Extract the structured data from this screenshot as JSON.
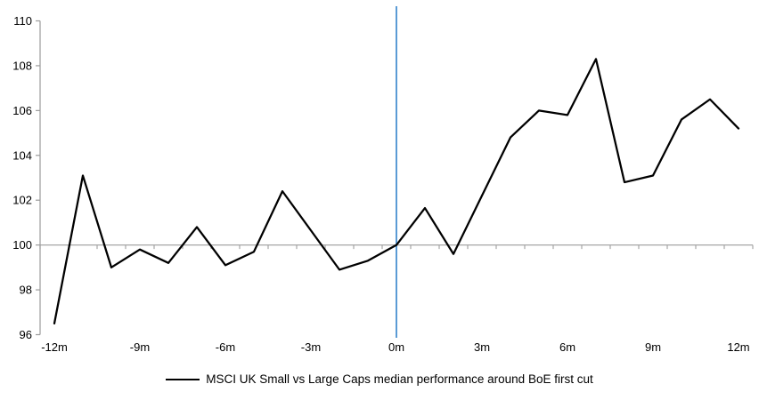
{
  "chart_data": {
    "type": "line",
    "title": "",
    "x": [
      -12,
      -11,
      -10,
      -9,
      -8,
      -7,
      -6,
      -5,
      -4,
      -3,
      -2,
      -1,
      0,
      1,
      2,
      3,
      4,
      5,
      6,
      7,
      8,
      9,
      10,
      11,
      12
    ],
    "series": [
      {
        "name": "MSCI UK Small vs Large Caps median performance around BoE first cut",
        "values": [
          96.5,
          103.1,
          99.0,
          99.8,
          99.2,
          100.8,
          99.1,
          99.7,
          102.4,
          100.65,
          98.9,
          99.3,
          100.0,
          101.65,
          99.6,
          102.2,
          104.8,
          106.0,
          105.8,
          108.3,
          102.8,
          103.1,
          105.6,
          106.5,
          105.2
        ]
      }
    ],
    "x_tick_values": [
      -12,
      -9,
      -6,
      -3,
      0,
      3,
      6,
      9,
      12
    ],
    "x_tick_labels": [
      "-12m",
      "-9m",
      "-6m",
      "-3m",
      "0m",
      "3m",
      "6m",
      "9m",
      "12m"
    ],
    "y_ticks": [
      96,
      98,
      100,
      102,
      104,
      106,
      108,
      110
    ],
    "ylim": [
      96,
      110
    ],
    "baseline_value": 100,
    "event_line_x": 0,
    "grid": "off",
    "legend_position": "bottom",
    "colors": {
      "series": "#000000",
      "baseline": "#a6a6a6",
      "event_line": "#5b9bd5",
      "axis": "#9b9b9b",
      "tick_text": "#000000"
    }
  },
  "legend": {
    "label": "MSCI UK Small vs Large Caps median performance around BoE first cut"
  }
}
